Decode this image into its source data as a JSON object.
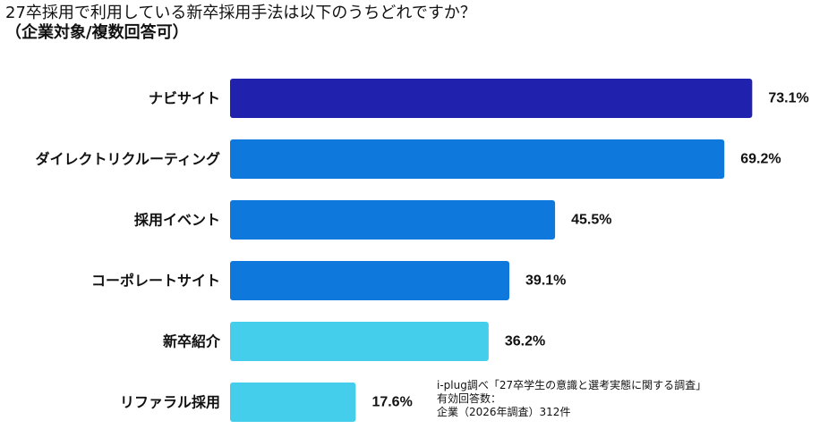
{
  "title": {
    "line1": "27卒採用で利用している新卒採用手法は以下のうちどれですか？",
    "line2": "（企業対象/複数回答可）"
  },
  "chart_data": {
    "type": "bar",
    "orientation": "horizontal",
    "categories": [
      "ナビサイト",
      "ダイレクトリクルーティング",
      "採用イベント",
      "コーポレートサイト",
      "新卒紹介",
      "リファラル採用"
    ],
    "values": [
      73.1,
      69.2,
      45.5,
      39.1,
      36.2,
      17.6
    ],
    "value_labels": [
      "73.1%",
      "69.2%",
      "45.5%",
      "39.1%",
      "36.2%",
      "17.6%"
    ],
    "bar_colors": [
      "#2022AE",
      "#0E78DC",
      "#0E78DC",
      "#0E78DC",
      "#45CDEC",
      "#45CDEC"
    ],
    "title": "27卒採用で利用している新卒採用手法は以下のうちどれですか？",
    "xlabel": "",
    "ylabel": "",
    "xlim": [
      0,
      100
    ],
    "grid": false,
    "legend": "none"
  },
  "note": {
    "line1": "i-plug調べ「27卒学生の意識と選考実態に関する調査」",
    "line2": "有効回答数：",
    "line3": "企業（2026年調査）312件"
  }
}
